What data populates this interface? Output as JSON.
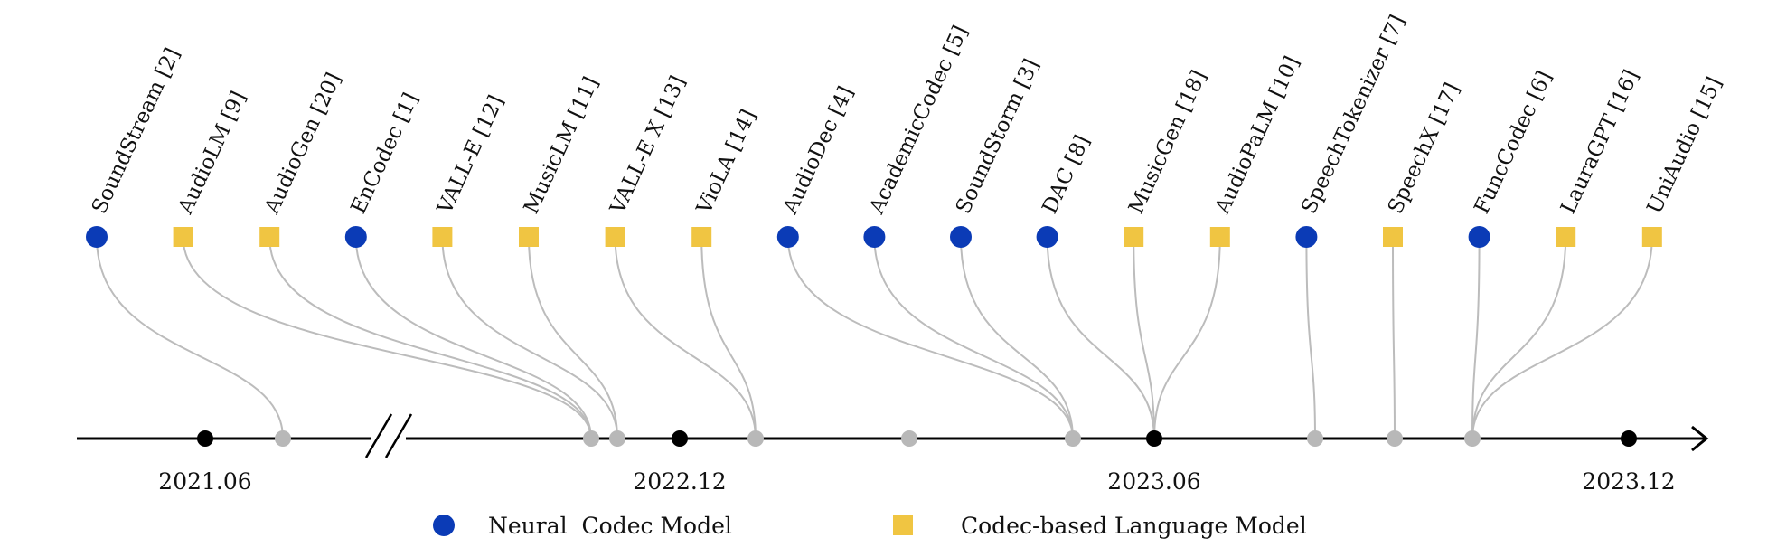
{
  "colors": {
    "neural_codec": "#0b3bb6",
    "codec_lm": "#f0c542",
    "connector": "#bcbcbc",
    "axis": "#000000",
    "release_dot": "#b8b8b8"
  },
  "legend": {
    "neural_codec": "Neural  Codec Model",
    "codec_lm": "Codec-based Language Model"
  },
  "axis_labels": [
    "2021.06",
    "2022.12",
    "2023.06",
    "2023.12"
  ],
  "models": [
    {
      "label": "SoundStream [2]",
      "type": "neural_codec",
      "release": 0
    },
    {
      "label": "AudioLM [9]",
      "type": "codec_lm",
      "release": 1
    },
    {
      "label": "AudioGen [20]",
      "type": "codec_lm",
      "release": 1
    },
    {
      "label": "EnCodec [1]",
      "type": "neural_codec",
      "release": 1
    },
    {
      "label": "VALL-E [12]",
      "type": "codec_lm",
      "release": 2
    },
    {
      "label": "MusicLM [11]",
      "type": "codec_lm",
      "release": 2
    },
    {
      "label": "VALL-E X [13]",
      "type": "codec_lm",
      "release": 3
    },
    {
      "label": "VioLA [14]",
      "type": "codec_lm",
      "release": 3
    },
    {
      "label": "AudioDec [4]",
      "type": "neural_codec",
      "release": 5
    },
    {
      "label": "AcademicCodec [5]",
      "type": "neural_codec",
      "release": 5
    },
    {
      "label": "SoundStorm [3]",
      "type": "neural_codec",
      "release": 5
    },
    {
      "label": "DAC [8]",
      "type": "neural_codec",
      "release": 6
    },
    {
      "label": "MusicGen [18]",
      "type": "codec_lm",
      "release": 6
    },
    {
      "label": "AudioPaLM [10]",
      "type": "codec_lm",
      "release": 6
    },
    {
      "label": "SpeechTokenizer [7]",
      "type": "neural_codec",
      "release": 7
    },
    {
      "label": "SpeechX [17]",
      "type": "codec_lm",
      "release": 8
    },
    {
      "label": "FuncCodec [6]",
      "type": "neural_codec",
      "release": 9
    },
    {
      "label": "LauraGPT [16]",
      "type": "codec_lm",
      "release": 9
    },
    {
      "label": "UniAudio [15]",
      "type": "codec_lm",
      "release": 9
    }
  ]
}
